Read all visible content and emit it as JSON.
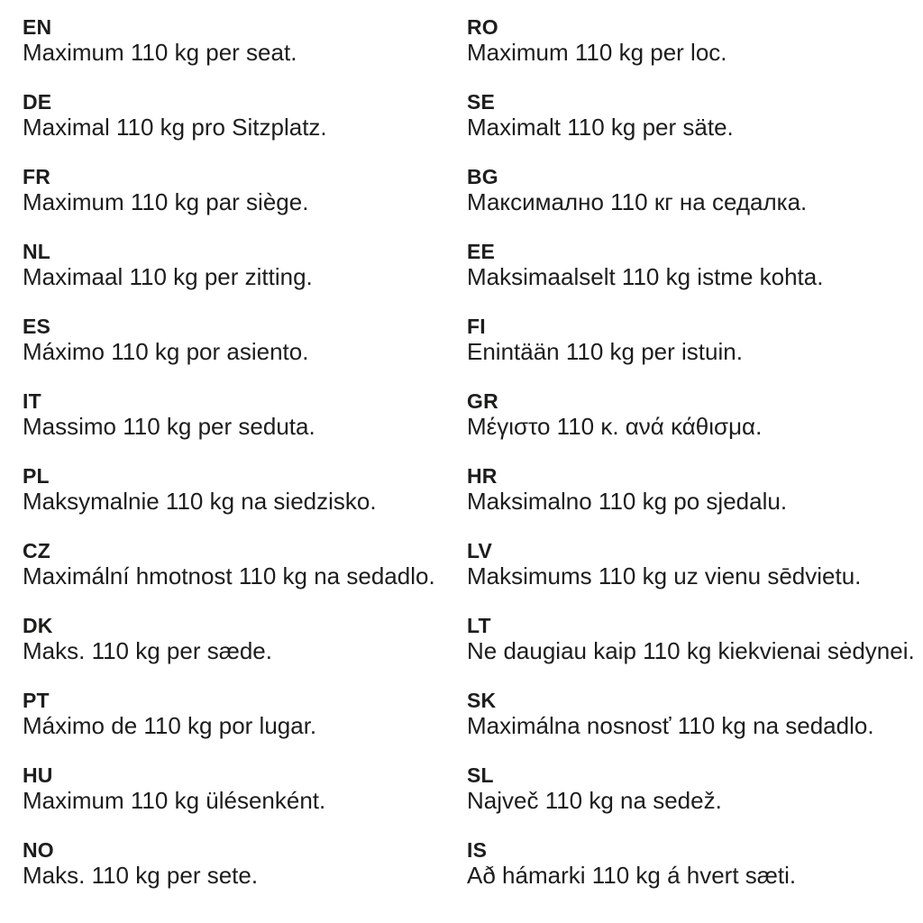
{
  "colors": {
    "background": "#ffffff",
    "text": "#1d1d1b"
  },
  "columns": [
    {
      "entries": [
        {
          "code": "EN",
          "text": "Maximum 110 kg per seat."
        },
        {
          "code": "DE",
          "text": "Maximal 110 kg pro Sitzplatz."
        },
        {
          "code": "FR",
          "text": "Maximum 110 kg par siège."
        },
        {
          "code": "NL",
          "text": "Maximaal 110 kg per zitting."
        },
        {
          "code": "ES",
          "text": "Máximo 110 kg por asiento."
        },
        {
          "code": "IT",
          "text": "Massimo 110 kg per seduta."
        },
        {
          "code": "PL",
          "text": "Maksymalnie 110 kg na siedzisko."
        },
        {
          "code": "CZ",
          "text": "Maximální hmotnost 110 kg na sedadlo."
        },
        {
          "code": "DK",
          "text": "Maks. 110 kg per sæde."
        },
        {
          "code": "PT",
          "text": "Máximo de 110 kg por lugar."
        },
        {
          "code": "HU",
          "text": "Maximum 110 kg ülésenként."
        },
        {
          "code": "NO",
          "text": "Maks. 110 kg per sete."
        }
      ]
    },
    {
      "entries": [
        {
          "code": "RO",
          "text": "Maximum 110 kg per loc."
        },
        {
          "code": "SE",
          "text": "Maximalt 110 kg per säte."
        },
        {
          "code": "BG",
          "text": "Максимално 110 кг на седалка."
        },
        {
          "code": "EE",
          "text": "Maksimaalselt 110 kg istme kohta."
        },
        {
          "code": "FI",
          "text": "Enintään 110 kg per istuin."
        },
        {
          "code": "GR",
          "text": "Μέγιστο 110 κ. ανά κάθισμα."
        },
        {
          "code": "HR",
          "text": "Maksimalno 110 kg po sjedalu."
        },
        {
          "code": "LV",
          "text": "Maksimums 110 kg uz vienu sēdvietu."
        },
        {
          "code": "LT",
          "text": "Ne daugiau kaip 110 kg kiekvienai sėdynei."
        },
        {
          "code": "SK",
          "text": "Maximálna nosnosť 110 kg na sedadlo."
        },
        {
          "code": "SL",
          "text": "Največ 110 kg na sedež."
        },
        {
          "code": "IS",
          "text": "Að hámarki 110 kg á hvert sæti."
        }
      ]
    }
  ]
}
